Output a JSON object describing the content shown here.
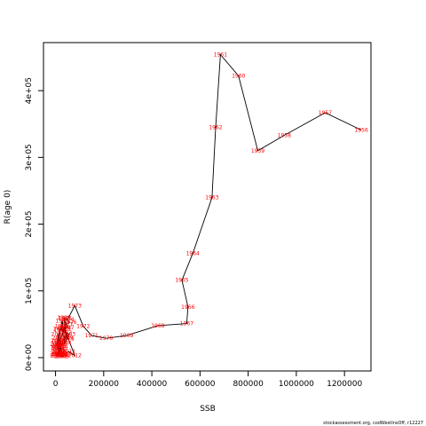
{
  "chart_data": {
    "type": "line",
    "title": "",
    "xlabel": "SSB",
    "ylabel": "R(age 0)",
    "xlim": [
      -50000,
      1310000
    ],
    "ylim": [
      -20000,
      472000
    ],
    "x_ticks": [
      0,
      200000,
      400000,
      600000,
      800000,
      1000000,
      1200000
    ],
    "y_ticks": [
      0,
      100000,
      200000,
      300000,
      400000
    ],
    "x_tick_labels": [
      "0",
      "200000",
      "400000",
      "600000",
      "800000",
      "1000000",
      "1200000"
    ],
    "y_tick_labels": [
      "0e+00",
      "1e+05",
      "2e+05",
      "3e+05",
      "4e+05"
    ],
    "grid": false,
    "line_color": "#000000",
    "label_color": "#ff0000",
    "series": [
      {
        "points": [
          {
            "year": "1956",
            "x": 1270000,
            "y": 341000
          },
          {
            "year": "1957",
            "x": 1120000,
            "y": 367000
          },
          {
            "year": "1958",
            "x": 950000,
            "y": 333000
          },
          {
            "year": "1959",
            "x": 840000,
            "y": 310000
          },
          {
            "year": "1960",
            "x": 760000,
            "y": 422000
          },
          {
            "year": "1961",
            "x": 685000,
            "y": 454000
          },
          {
            "year": "1962",
            "x": 665000,
            "y": 345000
          },
          {
            "year": "1963",
            "x": 650000,
            "y": 240000
          },
          {
            "year": "1964",
            "x": 570000,
            "y": 156000
          },
          {
            "year": "1965",
            "x": 525000,
            "y": 116000
          },
          {
            "year": "1966",
            "x": 550000,
            "y": 76000
          },
          {
            "year": "1967",
            "x": 545000,
            "y": 51000
          },
          {
            "year": "1968",
            "x": 425000,
            "y": 48000
          },
          {
            "year": "1969",
            "x": 295000,
            "y": 33000
          },
          {
            "year": "1970",
            "x": 210000,
            "y": 29000
          },
          {
            "year": "1971",
            "x": 150000,
            "y": 33000
          },
          {
            "year": "1972",
            "x": 115000,
            "y": 47000
          },
          {
            "year": "1973",
            "x": 80000,
            "y": 78000
          },
          {
            "year": "1974",
            "x": 50000,
            "y": 57000
          },
          {
            "year": "1975",
            "x": 40000,
            "y": 59000
          },
          {
            "year": "1976",
            "x": 60000,
            "y": 53000
          },
          {
            "year": "1977",
            "x": 45000,
            "y": 50000
          },
          {
            "year": "1978",
            "x": 35000,
            "y": 43000
          },
          {
            "year": "1979",
            "x": 50000,
            "y": 28000
          },
          {
            "year": "1980",
            "x": 30000,
            "y": 33000
          },
          {
            "year": "1981",
            "x": 25000,
            "y": 47000
          },
          {
            "year": "1982",
            "x": 40000,
            "y": 38000
          },
          {
            "year": "1983",
            "x": 55000,
            "y": 35000
          },
          {
            "year": "1984",
            "x": 38000,
            "y": 22000
          },
          {
            "year": "1985",
            "x": 28000,
            "y": 55000
          },
          {
            "year": "1986",
            "x": 20000,
            "y": 41000
          },
          {
            "year": "1987",
            "x": 50000,
            "y": 45000
          },
          {
            "year": "1988",
            "x": 35000,
            "y": 60000
          },
          {
            "year": "1989",
            "x": 45000,
            "y": 30000
          },
          {
            "year": "1990",
            "x": 30000,
            "y": 26000
          },
          {
            "year": "1991",
            "x": 25000,
            "y": 18000
          },
          {
            "year": "1992",
            "x": 15000,
            "y": 12000
          },
          {
            "year": "1993",
            "x": 10000,
            "y": 5000
          },
          {
            "year": "1994",
            "x": 12000,
            "y": 20000
          },
          {
            "year": "1995",
            "x": 10000,
            "y": 25000
          },
          {
            "year": "1996",
            "x": 15000,
            "y": 18000
          },
          {
            "year": "1997",
            "x": 20000,
            "y": 22000
          },
          {
            "year": "1998",
            "x": 22000,
            "y": 15000
          },
          {
            "year": "1999",
            "x": 15000,
            "y": 9000
          },
          {
            "year": "2000",
            "x": 10000,
            "y": 35000
          },
          {
            "year": "2001",
            "x": 8000,
            "y": 15000
          },
          {
            "year": "2002",
            "x": 12000,
            "y": 10000
          },
          {
            "year": "2003",
            "x": 18000,
            "y": 5000
          },
          {
            "year": "2004",
            "x": 12000,
            "y": 3000
          },
          {
            "year": "2005",
            "x": 25000,
            "y": 4000
          },
          {
            "year": "2006",
            "x": 5000,
            "y": 6000
          },
          {
            "year": "2007",
            "x": 5000,
            "y": 3000
          },
          {
            "year": "2008",
            "x": 22000,
            "y": 2000
          },
          {
            "year": "2009",
            "x": 30000,
            "y": 2000
          },
          {
            "year": "2010",
            "x": 40000,
            "y": 6000
          },
          {
            "year": "2011",
            "x": 55000,
            "y": 9000
          },
          {
            "year": "2012",
            "x": 80000,
            "y": 3000
          },
          {
            "year": "2013",
            "x": 35000,
            "y": 45000
          },
          {
            "year": "2014",
            "x": 10000,
            "y": 13000
          },
          {
            "year": "2015",
            "x": 22000,
            "y": 8000
          },
          {
            "year": "2016",
            "x": 5000,
            "y": 20000
          },
          {
            "year": "2017",
            "x": 8000,
            "y": 25000
          },
          {
            "year": "2018",
            "x": 15000,
            "y": 30000
          },
          {
            "year": "2019",
            "x": 25000,
            "y": 5000
          },
          {
            "year": "2020",
            "x": 18000,
            "y": 43000
          },
          {
            "year": "2021",
            "x": 10000,
            "y": 18000
          },
          {
            "year": "2022",
            "x": 12000,
            "y": 3000
          }
        ]
      }
    ]
  },
  "credit": "stockassessment.org, codWestInsOff, r12227"
}
